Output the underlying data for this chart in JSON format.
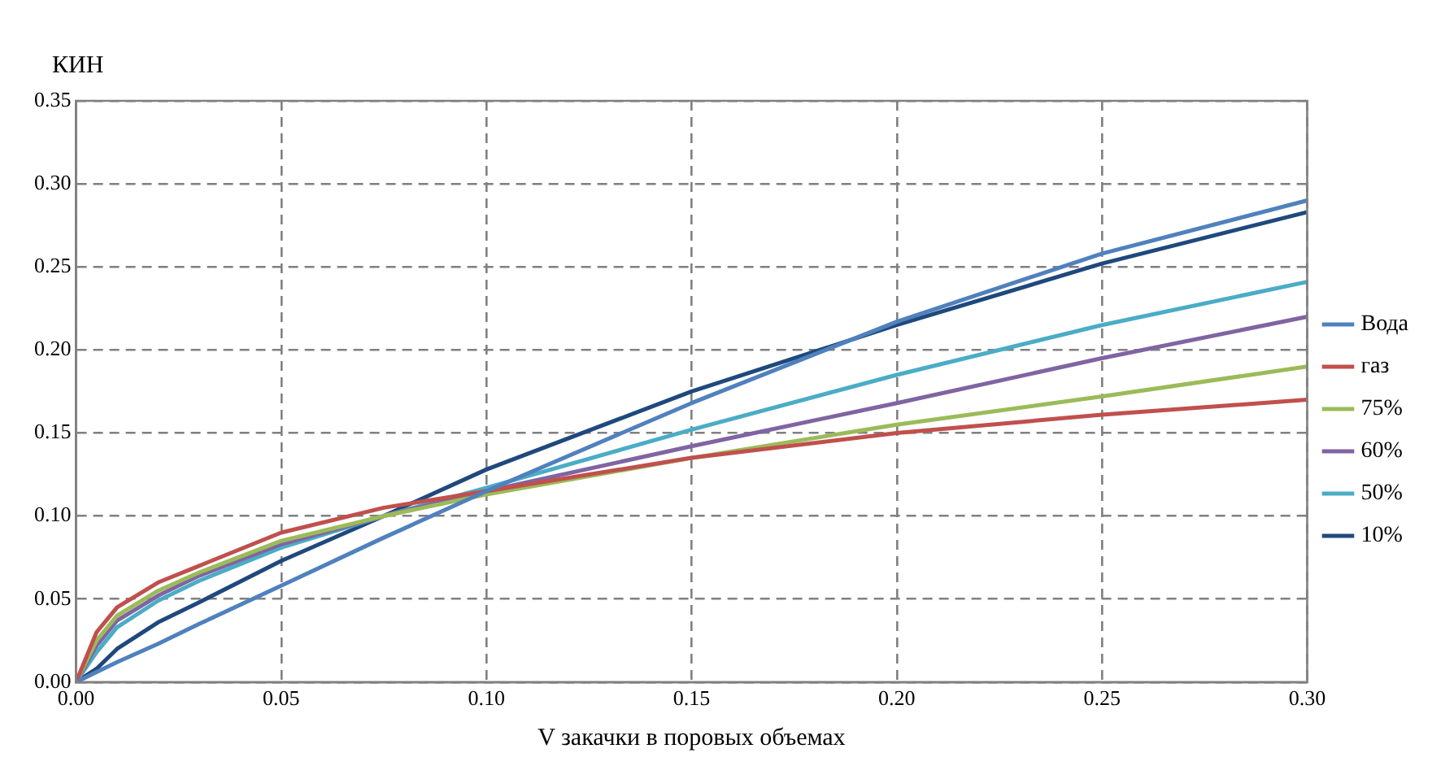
{
  "chart_data": {
    "type": "line",
    "xlabel": "V закачки в поровых объемах",
    "ylabel": "КИН",
    "x": [
      0,
      0.005,
      0.01,
      0.02,
      0.03,
      0.05,
      0.075,
      0.1,
      0.15,
      0.2,
      0.25,
      0.3
    ],
    "xlim": [
      0,
      0.3
    ],
    "xticks": [
      {
        "value": 0,
        "label": "0.00"
      },
      {
        "value": 0.05,
        "label": "0.05"
      },
      {
        "value": 0.1,
        "label": "0.10"
      },
      {
        "value": 0.15,
        "label": "0.15"
      },
      {
        "value": 0.2,
        "label": "0.20"
      },
      {
        "value": 0.25,
        "label": "0.25"
      },
      {
        "value": 0.3,
        "label": "0.30"
      }
    ],
    "ylim": [
      0,
      0.35
    ],
    "yticks": [
      {
        "value": 0,
        "label": "0.00"
      },
      {
        "value": 0.05,
        "label": "0.05"
      },
      {
        "value": 0.1,
        "label": "0.10"
      },
      {
        "value": 0.15,
        "label": "0.15"
      },
      {
        "value": 0.2,
        "label": "0.20"
      },
      {
        "value": 0.25,
        "label": "0.25"
      },
      {
        "value": 0.3,
        "label": "0.30"
      },
      {
        "value": 0.35,
        "label": "0.35"
      }
    ],
    "grid": true,
    "legend": "right",
    "marker": "none",
    "line_style": "solid",
    "series": [
      {
        "name": "Вода",
        "color": "#4f81bd",
        "values": [
          0,
          0.006,
          0.012,
          0.023,
          0.035,
          0.058,
          0.087,
          0.115,
          0.168,
          0.217,
          0.258,
          0.29
        ]
      },
      {
        "name": "газ",
        "color": "#c0504d",
        "values": [
          0,
          0.03,
          0.045,
          0.06,
          0.07,
          0.09,
          0.105,
          0.115,
          0.135,
          0.15,
          0.161,
          0.17
        ]
      },
      {
        "name": "75%",
        "color": "#9bbb59",
        "values": [
          0,
          0.025,
          0.04,
          0.055,
          0.066,
          0.085,
          0.1,
          0.113,
          0.135,
          0.155,
          0.172,
          0.19
        ]
      },
      {
        "name": "60%",
        "color": "#8064a2",
        "values": [
          0,
          0.022,
          0.037,
          0.052,
          0.064,
          0.083,
          0.1,
          0.115,
          0.142,
          0.168,
          0.195,
          0.22
        ]
      },
      {
        "name": "50%",
        "color": "#4bacc6",
        "values": [
          0,
          0.018,
          0.033,
          0.049,
          0.061,
          0.081,
          0.1,
          0.117,
          0.152,
          0.185,
          0.215,
          0.241
        ]
      },
      {
        "name": "10%",
        "color": "#1f497d",
        "values": [
          0,
          0.008,
          0.02,
          0.036,
          0.048,
          0.073,
          0.1,
          0.128,
          0.175,
          0.215,
          0.252,
          0.283
        ]
      }
    ]
  }
}
